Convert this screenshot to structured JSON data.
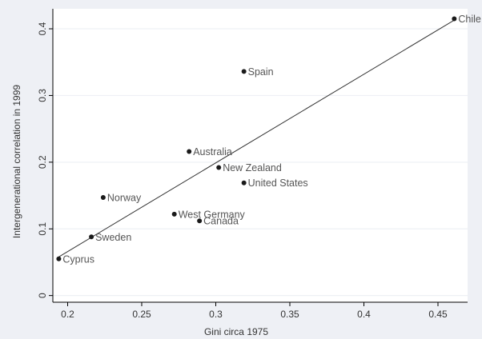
{
  "chart_data": {
    "type": "scatter",
    "title": "",
    "xlabel": "Gini circa 1975",
    "ylabel": "Intergenerational correlation in 1999",
    "xlim": [
      0.19,
      0.47
    ],
    "ylim": [
      -0.01,
      0.43
    ],
    "xticks": [
      0.2,
      0.25,
      0.3,
      0.35,
      0.4,
      0.45
    ],
    "xtick_labels": [
      "0.2",
      "0.25",
      "0.3",
      "0.35",
      "0.4",
      "0.45"
    ],
    "yticks": [
      0,
      0.1,
      0.2,
      0.3,
      0.4
    ],
    "ytick_labels": [
      "0",
      "0.1",
      "0.2",
      "0.3",
      "0.4"
    ],
    "grid": "horizontal",
    "legend": "none",
    "colors": {
      "plot_background": "#ffffff",
      "figure_background": "#eef0f5",
      "gridline": "#eef0f5",
      "marker": "#1a1a1a",
      "fit_line": "#333333",
      "label_text": "#555555"
    },
    "points": [
      {
        "label": "Chile",
        "x": 0.461,
        "y": 0.415
      },
      {
        "label": "Spain",
        "x": 0.319,
        "y": 0.336
      },
      {
        "label": "Australia",
        "x": 0.282,
        "y": 0.216
      },
      {
        "label": "New Zealand",
        "x": 0.302,
        "y": 0.192
      },
      {
        "label": "United States",
        "x": 0.319,
        "y": 0.169
      },
      {
        "label": "Norway",
        "x": 0.224,
        "y": 0.147
      },
      {
        "label": "West Germany",
        "x": 0.272,
        "y": 0.122
      },
      {
        "label": "Canada",
        "x": 0.289,
        "y": 0.112
      },
      {
        "label": "Sweden",
        "x": 0.216,
        "y": 0.088
      },
      {
        "label": "Cyprus",
        "x": 0.194,
        "y": 0.055
      }
    ],
    "fit_line": {
      "x": [
        0.194,
        0.461
      ],
      "y": [
        0.058,
        0.413
      ]
    }
  }
}
